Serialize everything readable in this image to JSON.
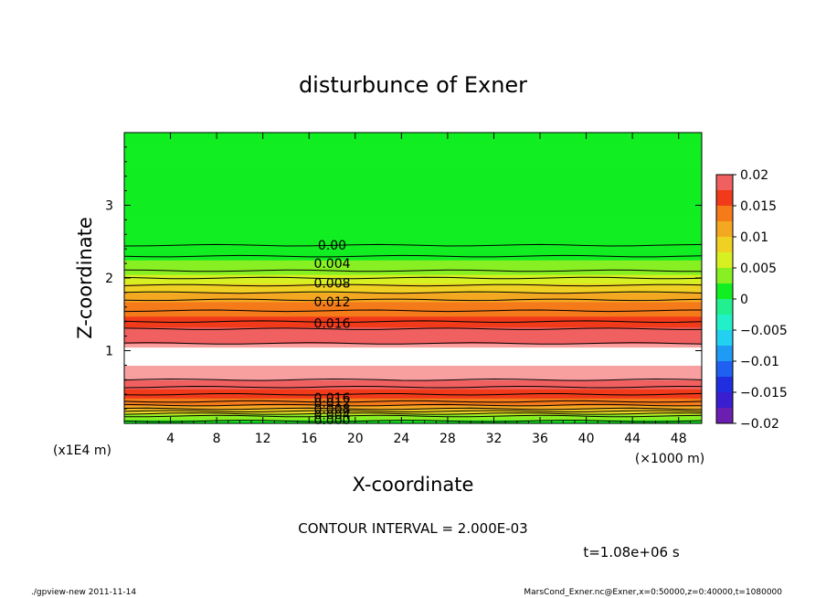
{
  "chart_data": {
    "type": "heatmap",
    "title": "disturbunce of Exner",
    "xlabel": "X-coordinate",
    "ylabel": "Z-coordinate",
    "x_scale_note": "(×1000 m)",
    "y_scale_note": "(x1E4 m)",
    "xlim": [
      0,
      50
    ],
    "ylim": [
      0,
      4
    ],
    "x_ticks": [
      4,
      8,
      12,
      16,
      20,
      24,
      28,
      32,
      36,
      40,
      44,
      48
    ],
    "y_ticks": [
      1,
      2,
      3
    ],
    "x_tick_labels": [
      "4",
      "8",
      "12",
      "16",
      "20",
      "24",
      "28",
      "32",
      "36",
      "40",
      "44",
      "48"
    ],
    "y_tick_labels": [
      "1",
      "2",
      "3"
    ],
    "colorbar": {
      "min": -0.02,
      "max": 0.02,
      "ticks": [
        0.02,
        0.015,
        0.01,
        0.005,
        0,
        -0.005,
        -0.01,
        -0.015,
        -0.02
      ],
      "tick_labels": [
        "0.02",
        "0.015",
        "0.01",
        "0.005",
        "0",
        "−0.005",
        "−0.01",
        "−0.015",
        "−0.02"
      ]
    },
    "vertical_profile": [
      {
        "z": 0.0,
        "value": 0.001
      },
      {
        "z": 0.1,
        "value": 0.004
      },
      {
        "z": 0.2,
        "value": 0.01
      },
      {
        "z": 0.3,
        "value": 0.014
      },
      {
        "z": 0.4,
        "value": 0.016
      },
      {
        "z": 0.5,
        "value": 0.018
      },
      {
        "z": 0.6,
        "value": 0.02
      },
      {
        "z": 1.0,
        "value": 0.021
      },
      {
        "z": 1.1,
        "value": 0.02
      },
      {
        "z": 1.3,
        "value": 0.018
      },
      {
        "z": 1.4,
        "value": 0.016
      },
      {
        "z": 1.7,
        "value": 0.012
      },
      {
        "z": 1.9,
        "value": 0.008
      },
      {
        "z": 2.1,
        "value": 0.004
      },
      {
        "z": 2.3,
        "value": 0.002
      },
      {
        "z": 2.45,
        "value": 0.0
      },
      {
        "z": 4.0,
        "value": 0.0
      }
    ],
    "contour_interval": 0.002,
    "contour_labels": [
      {
        "text": "0.00",
        "x": 18,
        "z": 2.45
      },
      {
        "text": "0.004",
        "x": 18,
        "z": 2.2
      },
      {
        "text": "0.008",
        "x": 18,
        "z": 1.93
      },
      {
        "text": "0.012",
        "x": 18,
        "z": 1.67
      },
      {
        "text": "0.016",
        "x": 18,
        "z": 1.38
      },
      {
        "text": "0.016",
        "x": 18,
        "z": 0.35
      },
      {
        "text": "0.012",
        "x": 18,
        "z": 0.28
      },
      {
        "text": "0.008",
        "x": 18,
        "z": 0.2
      },
      {
        "text": "0.004",
        "x": 18,
        "z": 0.12
      },
      {
        "text": "0.000",
        "x": 18,
        "z": 0.05
      }
    ],
    "contour_interval_text": "CONTOUR INTERVAL = 2.000E-03",
    "time_text": "t=1.08e+06 s"
  },
  "footer": {
    "left": "./gpview-new  2011-11-14",
    "right": "MarsCond_Exner.nc@Exner,x=0:50000,z=0:40000,t=1080000"
  }
}
